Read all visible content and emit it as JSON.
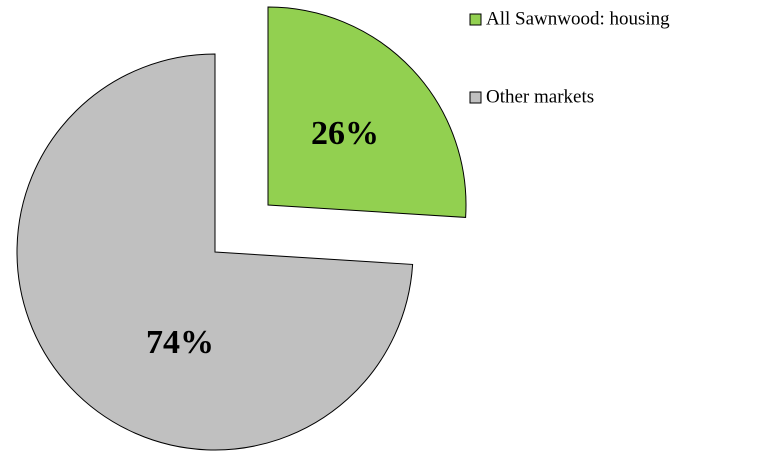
{
  "chart_data": {
    "type": "pie",
    "categories": [
      "All Sawnwood: housing",
      "Other markets"
    ],
    "values": [
      26,
      74
    ],
    "value_labels": [
      "26%",
      "74%"
    ],
    "colors": [
      "#92d050",
      "#c0c0c0"
    ],
    "legend": "top-right"
  }
}
